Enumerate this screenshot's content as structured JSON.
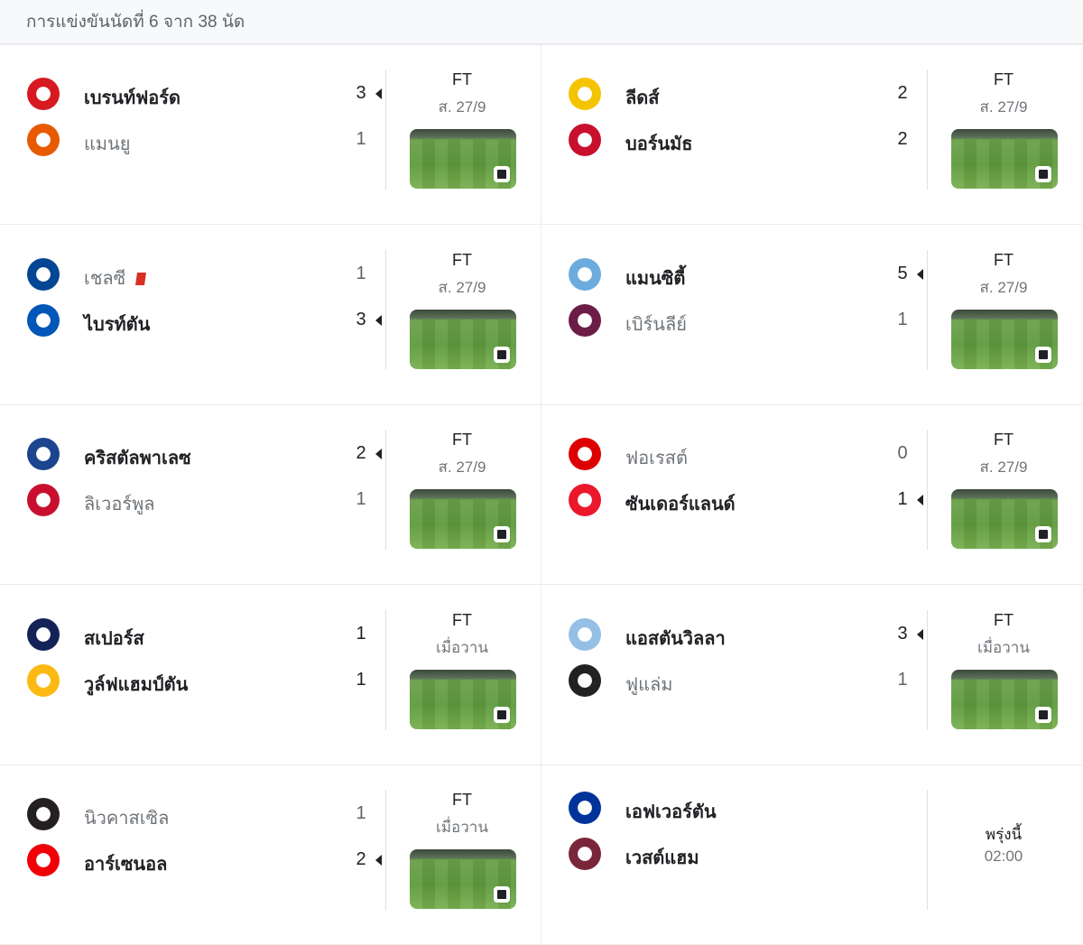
{
  "header": {
    "title": "การแข่งขันนัดที่ 6 จาก 38 นัด"
  },
  "matches": [
    {
      "status": "FT",
      "date": "ส. 27/9",
      "home": {
        "name": "เบรนท์ฟอร์ด",
        "score": "3",
        "winner": true,
        "color": "#d71920"
      },
      "away": {
        "name": "แมนยู",
        "score": "1",
        "winner": false,
        "color": "#e85a00"
      },
      "has_video": true
    },
    {
      "status": "FT",
      "date": "ส. 27/9",
      "home": {
        "name": "ลีดส์",
        "score": "2",
        "winner": false,
        "draw": true,
        "color": "#f5c400"
      },
      "away": {
        "name": "บอร์นมัธ",
        "score": "2",
        "winner": false,
        "draw": true,
        "color": "#c8102e"
      },
      "has_video": true
    },
    {
      "status": "FT",
      "date": "ส. 27/9",
      "home": {
        "name": "เชลซี",
        "score": "1",
        "winner": false,
        "red_card": true,
        "color": "#034694"
      },
      "away": {
        "name": "ไบรท์ตัน",
        "score": "3",
        "winner": true,
        "color": "#0057b8"
      },
      "has_video": true
    },
    {
      "status": "FT",
      "date": "ส. 27/9",
      "home": {
        "name": "แมนซิตี้",
        "score": "5",
        "winner": true,
        "color": "#6cabdd"
      },
      "away": {
        "name": "เบิร์นลีย์",
        "score": "1",
        "winner": false,
        "color": "#6c1d45"
      },
      "has_video": true
    },
    {
      "status": "FT",
      "date": "ส. 27/9",
      "home": {
        "name": "คริสตัลพาเลซ",
        "score": "2",
        "winner": true,
        "color": "#1b458f"
      },
      "away": {
        "name": "ลิเวอร์พูล",
        "score": "1",
        "winner": false,
        "color": "#c8102e"
      },
      "has_video": true
    },
    {
      "status": "FT",
      "date": "ส. 27/9",
      "home": {
        "name": "ฟอเรสต์",
        "score": "0",
        "winner": false,
        "color": "#dd0000"
      },
      "away": {
        "name": "ซันเดอร์แลนด์",
        "score": "1",
        "winner": true,
        "color": "#eb172b"
      },
      "has_video": true
    },
    {
      "status": "FT",
      "date": "เมื่อวาน",
      "home": {
        "name": "สเปอร์ส",
        "score": "1",
        "winner": false,
        "draw": true,
        "color": "#132257"
      },
      "away": {
        "name": "วูล์ฟแฮมป์ตัน",
        "score": "1",
        "winner": false,
        "draw": true,
        "color": "#fdb913"
      },
      "has_video": true
    },
    {
      "status": "FT",
      "date": "เมื่อวาน",
      "home": {
        "name": "แอสตันวิลลา",
        "score": "3",
        "winner": true,
        "color": "#95bfe5"
      },
      "away": {
        "name": "ฟูแล่ม",
        "score": "1",
        "winner": false,
        "color": "#222222"
      },
      "has_video": true
    },
    {
      "status": "FT",
      "date": "เมื่อวาน",
      "home": {
        "name": "นิวคาสเซิล",
        "score": "1",
        "winner": false,
        "color": "#241f20"
      },
      "away": {
        "name": "อาร์เซนอล",
        "score": "2",
        "winner": true,
        "color": "#ef0107"
      },
      "has_video": true
    },
    {
      "status": "พรุ่งนี้",
      "date": "02:00",
      "upcoming": true,
      "home": {
        "name": "เอฟเวอร์ตัน",
        "color": "#003399"
      },
      "away": {
        "name": "เวสต์แฮม",
        "color": "#7a263a"
      },
      "has_video": false
    }
  ]
}
